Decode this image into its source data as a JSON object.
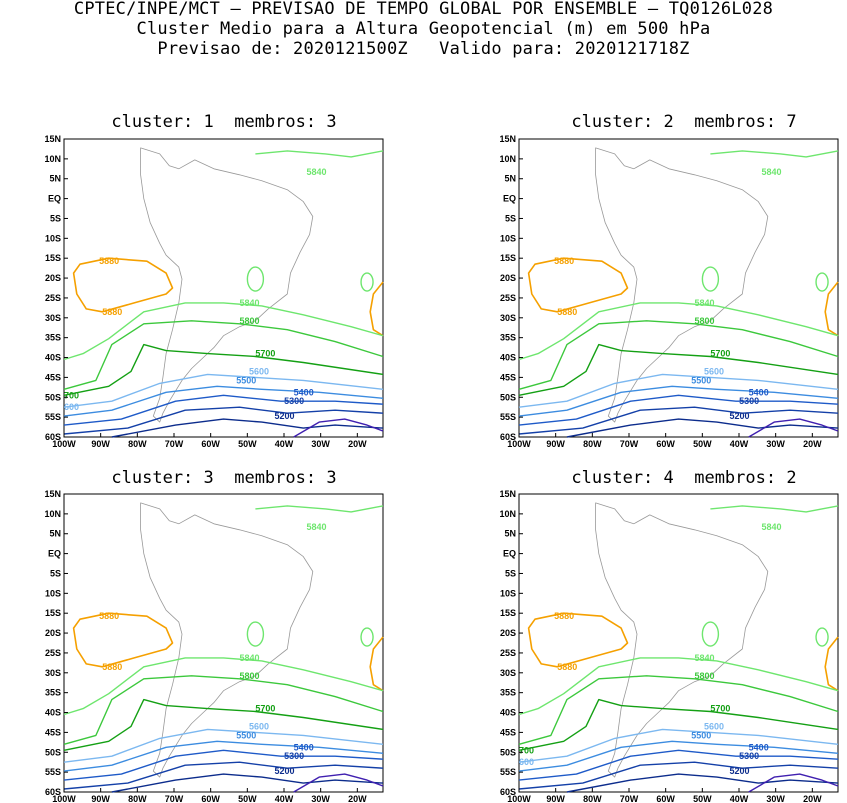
{
  "header": {
    "line1": "CPTEC/INPE/MCT – PREVISAO DE TEMPO GLOBAL POR ENSEMBLE – TQ0126L028",
    "line2": "Cluster Medio para a Altura Geopotencial (m) em 500 hPa",
    "line3": "Previsao de: 2020121500Z   Valido para: 2020121718Z"
  },
  "axes": {
    "lat_labels": [
      "15N",
      "10N",
      "5N",
      "EQ",
      "5S",
      "10S",
      "15S",
      "20S",
      "25S",
      "30S",
      "35S",
      "40S",
      "45S",
      "50S",
      "55S",
      "60S"
    ],
    "lon_labels": [
      "100W",
      "90W",
      "80W",
      "70W",
      "60W",
      "50W",
      "40W",
      "30W",
      "20W"
    ]
  },
  "colors": {
    "c5880": "#f5a000",
    "c5840": "#6ee66e",
    "c5800": "#3cc83c",
    "c5700": "#14a014",
    "c5600": "#7cb8f0",
    "c5500": "#3c8ce0",
    "c5400": "#1e5ac8",
    "c5300": "#1440a8",
    "c5200": "#0c2c8c",
    "c5100": "#4020b0",
    "coast": "#999999"
  },
  "panels": [
    {
      "title": "cluster: 1  membros: 3",
      "labels": {
        "l5880a": "5880",
        "l5880b": "5880",
        "l5840a": "5840",
        "l5840b": "5840",
        "l5800": "5800",
        "l5700": "5700",
        "l5600": "5600",
        "l5500": "5500",
        "l5400": "5400",
        "l5300": "5300",
        "l5200": "5200",
        "e5700": "700",
        "e5600": "600"
      }
    },
    {
      "title": "cluster: 2  membros: 7",
      "labels": {
        "l5880a": "5880",
        "l5880b": "5880",
        "l5840a": "5840",
        "l5840b": "5840",
        "l5800": "5800",
        "l5700": "5700",
        "l5600": "5600",
        "l5500": "5500",
        "l5400": "5400",
        "l5300": "5300",
        "l5200": "5200",
        "e5700": "",
        "e5600": ""
      }
    },
    {
      "title": "cluster: 3  membros: 3",
      "labels": {
        "l5880a": "5880",
        "l5880b": "5880",
        "l5840a": "5840",
        "l5840b": "5840",
        "l5800": "5800",
        "l5700": "5700",
        "l5600": "5600",
        "l5500": "5500",
        "l5400": "5400",
        "l5300": "5300",
        "l5200": "5200",
        "e5700": "",
        "e5600": ""
      }
    },
    {
      "title": "cluster: 4  membros: 2",
      "labels": {
        "l5880a": "5880",
        "l5880b": "5880",
        "l5840a": "5840",
        "l5840b": "5840",
        "l5800": "5800",
        "l5700": "5700",
        "l5600": "5600",
        "l5500": "5500",
        "l5400": "5400",
        "l5300": "5300",
        "l5200": "5200",
        "e5700": "700",
        "e5600": "600"
      }
    }
  ]
}
